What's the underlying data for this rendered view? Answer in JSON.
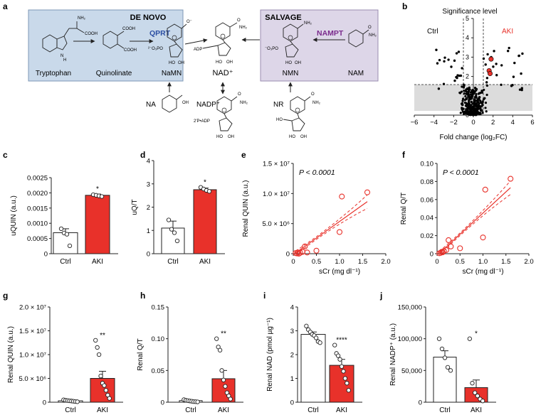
{
  "panel_a": {
    "letter": "a",
    "de_novo": {
      "title": "DE NOVO",
      "enzyme": "QPRT",
      "enzyme_color": "#2c4fa3",
      "box_color": "#c9d9ea",
      "labels": [
        "Tryptophan",
        "Quinolinate",
        "NaMN"
      ]
    },
    "salvage": {
      "title": "SALVAGE",
      "enzyme": "NAMPT",
      "enzyme_color": "#7a2a8c",
      "box_color": "#ddd6e8",
      "labels": [
        "NMN",
        "NAM"
      ]
    },
    "center": "NAD⁺",
    "bottom": [
      "NA",
      "NADP⁺",
      "NR"
    ],
    "chem": {
      "cooh": "COOH",
      "nh2": "NH₂",
      "adp": "ADP",
      "p": "²⁻O₃PO",
      "p2": "⁻O₃PO",
      "oh": "OH",
      "ho": "HO",
      "o": "O",
      "n": "N",
      "h": "H",
      "oxide": "O⁻",
      "adp2": "2′P•ADP"
    }
  },
  "chart_data": [
    {
      "id": "b",
      "type": "scatter",
      "title": "Significance level",
      "xlabel": "Fold change (log₂FC)",
      "ylabel": "",
      "xlim": [
        -6,
        6
      ],
      "ylim": [
        0,
        5
      ],
      "xticks": [
        "−6",
        "−4",
        "−2",
        "0",
        "2",
        "4",
        "6"
      ],
      "yticks": [
        "0",
        "1",
        "2",
        "3",
        "4",
        "5"
      ],
      "threshold_y": 1.3,
      "fold_lines": [
        -1,
        1
      ],
      "legend": [
        "Ctrl",
        "AKI"
      ],
      "legend_colors": [
        "#000000",
        "#e8312a"
      ],
      "highlight": [
        [
          1.6,
          2.3
        ],
        [
          1.8,
          2.9
        ],
        [
          1.7,
          2.15
        ]
      ]
    },
    {
      "id": "c",
      "type": "bar",
      "categories": [
        "Ctrl",
        "AKI"
      ],
      "values": [
        0.00069,
        0.00192
      ],
      "errors": [
        0.00013,
        4e-05
      ],
      "ylabel": "uQUIN (a.u.)",
      "ylim": [
        0,
        0.0025
      ],
      "yticks": [
        "0",
        "0.0005",
        "0.0010",
        "0.0015",
        "0.0020",
        "0.0025"
      ],
      "points": [
        [
          0.00082,
          0.00068,
          0.00064,
          0.00026
        ],
        [
          0.00194,
          0.00192,
          0.0019,
          0.00188
        ]
      ],
      "sig": [
        "",
        "*"
      ]
    },
    {
      "id": "d",
      "type": "bar",
      "categories": [
        "Ctrl",
        "AKI"
      ],
      "values": [
        1.1,
        2.75
      ],
      "errors": [
        0.3,
        0.07
      ],
      "ylabel": "uQ/T",
      "ylim": [
        0,
        4
      ],
      "yticks": [
        "0",
        "1",
        "2",
        "3",
        "4"
      ],
      "points": [
        [
          1.45,
          1.05,
          0.9,
          0.55
        ],
        [
          2.85,
          2.78,
          2.72,
          2.68
        ]
      ],
      "sig": [
        "",
        "*"
      ]
    },
    {
      "id": "e",
      "type": "scatter",
      "ylabel": "Renal QUIN (a.u.)",
      "xlabel": "sCr (mg dl⁻¹)",
      "xlim": [
        0,
        2.0
      ],
      "ylim": [
        0,
        15000000
      ],
      "xticks": [
        "0",
        "0.5",
        "1.0",
        "1.5",
        "2.0"
      ],
      "yticks": [
        "0",
        "5.0 × 10⁶",
        "1.0 × 10⁷",
        "1.5 × 10⁷"
      ],
      "annotation": "P < 0.0001",
      "fit": {
        "slope": 5500000,
        "intercept": -150000
      },
      "points": [
        [
          0.05,
          100000
        ],
        [
          0.08,
          50000
        ],
        [
          0.1,
          200000
        ],
        [
          0.12,
          0
        ],
        [
          0.15,
          150000
        ],
        [
          0.2,
          300000
        ],
        [
          0.25,
          1200000
        ],
        [
          0.3,
          200000
        ],
        [
          0.5,
          500000
        ],
        [
          1.0,
          3600000
        ],
        [
          1.05,
          9500000
        ],
        [
          1.6,
          10200000
        ]
      ]
    },
    {
      "id": "f",
      "type": "scatter",
      "ylabel": "Renal Q/T",
      "xlabel": "sCr (mg dl⁻¹)",
      "xlim": [
        0,
        2.0
      ],
      "ylim": [
        0,
        0.1
      ],
      "xticks": [
        "0",
        "0.5",
        "1.0",
        "1.5",
        "2.0"
      ],
      "yticks": [
        "0",
        "0.02",
        "0.04",
        "0.06",
        "0.08",
        "0.10"
      ],
      "annotation": "P < 0.0001",
      "fit": {
        "slope": 0.047,
        "intercept": -0.002
      },
      "points": [
        [
          0.05,
          0.0005
        ],
        [
          0.08,
          0.001
        ],
        [
          0.1,
          0.002
        ],
        [
          0.12,
          0.0015
        ],
        [
          0.15,
          0.003
        ],
        [
          0.2,
          0.004
        ],
        [
          0.25,
          0.015
        ],
        [
          0.3,
          0.008
        ],
        [
          0.5,
          0.006
        ],
        [
          1.0,
          0.018
        ],
        [
          1.05,
          0.071
        ],
        [
          1.6,
          0.083
        ]
      ]
    },
    {
      "id": "g",
      "type": "bar",
      "categories": [
        "Ctrl",
        "AKI"
      ],
      "values": [
        300000,
        5000000
      ],
      "errors": [
        80000,
        1500000
      ],
      "ylabel": "Renal QUIN (a.u.)",
      "ylim": [
        0,
        20000000
      ],
      "yticks": [
        "0",
        "5.0 × 10⁶",
        "1.0 × 10⁷",
        "1.5 × 10⁷",
        "2.0 × 10⁷"
      ],
      "points": [
        [
          500000,
          400000,
          350000,
          300000,
          250000,
          200000,
          150000,
          100000
        ],
        [
          13000000,
          11500000,
          10000000,
          5500000,
          4000000,
          3500000,
          2500000,
          1500000,
          800000
        ]
      ],
      "sig": [
        "",
        "**"
      ]
    },
    {
      "id": "h",
      "type": "bar",
      "categories": [
        "Ctrl",
        "AKI"
      ],
      "values": [
        0.0025,
        0.037
      ],
      "errors": [
        0.0005,
        0.013
      ],
      "ylabel": "Renal Q/T",
      "ylim": [
        0,
        0.15
      ],
      "yticks": [
        "0",
        "0.05",
        "0.10",
        "0.15"
      ],
      "points": [
        [
          0.004,
          0.003,
          0.0025,
          0.002,
          0.0015,
          0.001,
          0.0008,
          0.0005
        ],
        [
          0.1,
          0.087,
          0.082,
          0.05,
          0.035,
          0.025,
          0.015,
          0.01,
          0.005
        ]
      ],
      "sig": [
        "",
        "**"
      ]
    },
    {
      "id": "i",
      "type": "bar",
      "categories": [
        "Ctrl",
        "AKI"
      ],
      "values": [
        2.85,
        1.55
      ],
      "errors": [
        0.1,
        0.25
      ],
      "ylabel": "Renal NAD (pmol µg⁻¹)",
      "ylim": [
        0,
        4
      ],
      "yticks": [
        "0",
        "1",
        "2",
        "3",
        "4"
      ],
      "points": [
        [
          3.2,
          3.05,
          2.95,
          2.85,
          2.8,
          2.7,
          2.55,
          2.5
        ],
        [
          2.4,
          2.05,
          1.95,
          1.8,
          1.5,
          1.3,
          1.0,
          0.8,
          0.5
        ]
      ],
      "sig": [
        "",
        "****"
      ]
    },
    {
      "id": "j",
      "type": "bar",
      "categories": [
        "Ctrl",
        "AKI"
      ],
      "values": [
        71000,
        23000
      ],
      "errors": [
        10000,
        12000
      ],
      "ylabel": "Renal NADP⁺ (a.u.)",
      "ylim": [
        0,
        150000
      ],
      "yticks": [
        "0",
        "50,000",
        "100,000",
        "150,000"
      ],
      "points": [
        [
          100000,
          84000,
          70000,
          55000,
          50000
        ],
        [
          100000,
          30000,
          15000,
          10000,
          5000,
          2000
        ]
      ],
      "sig": [
        "",
        "*"
      ]
    }
  ],
  "colors": {
    "aki": "#e8312a",
    "ctrl": "#ffffff",
    "ink": "#222222"
  }
}
